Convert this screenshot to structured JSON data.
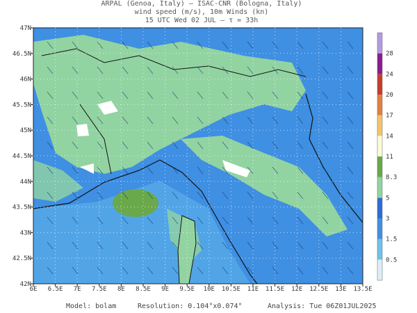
{
  "header": {
    "line1": "ARPAL (Genoa, Italy)  —  ISAC-CNR (Bologna, Italy)",
    "line2": "wind speed (m/s), 10m Winds (kn)",
    "line3": "15 UTC Wed 02 JUL  —  τ = 33h"
  },
  "map": {
    "lon_labels": [
      "6E",
      "6.5E",
      "7E",
      "7.5E",
      "8E",
      "8.5E",
      "9E",
      "9.5E",
      "10E",
      "10.5E",
      "11E",
      "11.5E",
      "12E",
      "12.5E",
      "13E",
      "13.5E"
    ],
    "lat_labels": [
      "42N",
      "42.5N",
      "43N",
      "43.5N",
      "44N",
      "44.5N",
      "45N",
      "45.5N",
      "46N",
      "46.5N",
      "47N"
    ]
  },
  "colorbar": {
    "labels": [
      "0.5",
      "1.5",
      "3",
      "5",
      "8.3",
      "11",
      "14",
      "17",
      "20",
      "24",
      "28"
    ],
    "colors": [
      "#dceef6",
      "#6cc3ea",
      "#3f90e4",
      "#2f6cd6",
      "#92d3a2",
      "#6aa84c",
      "#fcfcd8",
      "#f4c46c",
      "#e28040",
      "#c83c2a",
      "#8a1c8e",
      "#b49ae2"
    ]
  },
  "footer": {
    "model": "Model: bolam",
    "resolution": "Resolution: 0.104°x0.074°",
    "analysis": "Analysis: Tue 06Z01JUL2025"
  }
}
